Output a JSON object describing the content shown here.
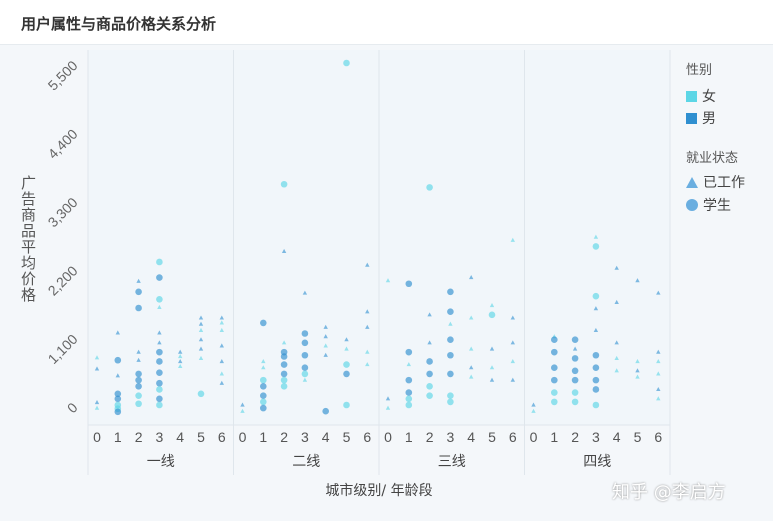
{
  "title": "用户属性与商品价格关系分析",
  "watermark": "知乎 @李启方",
  "legend": {
    "gender_title": "性别",
    "gender": [
      {
        "label": "女",
        "color": "#5cd6e6"
      },
      {
        "label": "男",
        "color": "#2f8fd0"
      }
    ],
    "status_title": "就业状态",
    "status": [
      {
        "label": "已工作",
        "shape": "triangle"
      },
      {
        "label": "学生",
        "shape": "circle"
      }
    ]
  },
  "chart_data": {
    "type": "scatter",
    "title": "用户属性与商品价格关系分析",
    "xlabel": "城市级别/ 年龄段",
    "ylabel": "广告商品平均价格",
    "ylim": [
      -300,
      5700
    ],
    "yticks": [
      0,
      1100,
      2200,
      3300,
      4400,
      5500
    ],
    "ytick_labels": [
      "0",
      "1,100",
      "2,200",
      "3,300",
      "4,400",
      "5,500"
    ],
    "panels": [
      "一线",
      "二线",
      "三线",
      "四线"
    ],
    "age_groups": [
      "0",
      "1",
      "2",
      "3",
      "4",
      "5",
      "6"
    ],
    "point_fields": [
      "panel",
      "age",
      "value",
      "gender",
      "status"
    ],
    "points": [
      [
        0,
        0,
        760,
        "F",
        "W"
      ],
      [
        0,
        0,
        580,
        "M",
        "W"
      ],
      [
        0,
        0,
        40,
        "M",
        "W"
      ],
      [
        0,
        0,
        -50,
        "F",
        "W"
      ],
      [
        0,
        1,
        1160,
        "M",
        "W"
      ],
      [
        0,
        1,
        720,
        "M",
        "S"
      ],
      [
        0,
        1,
        470,
        "M",
        "W"
      ],
      [
        0,
        1,
        180,
        "M",
        "S"
      ],
      [
        0,
        1,
        100,
        "M",
        "S"
      ],
      [
        0,
        1,
        0,
        "F",
        "S"
      ],
      [
        0,
        1,
        -60,
        "F",
        "S"
      ],
      [
        0,
        1,
        -110,
        "M",
        "S"
      ],
      [
        0,
        2,
        1990,
        "M",
        "W"
      ],
      [
        0,
        2,
        1820,
        "M",
        "S"
      ],
      [
        0,
        2,
        1560,
        "M",
        "S"
      ],
      [
        0,
        2,
        850,
        "M",
        "W"
      ],
      [
        0,
        2,
        720,
        "M",
        "W"
      ],
      [
        0,
        2,
        500,
        "M",
        "S"
      ],
      [
        0,
        2,
        400,
        "M",
        "S"
      ],
      [
        0,
        2,
        300,
        "M",
        "S"
      ],
      [
        0,
        2,
        150,
        "F",
        "S"
      ],
      [
        0,
        2,
        20,
        "F",
        "S"
      ],
      [
        0,
        3,
        2300,
        "F",
        "S"
      ],
      [
        0,
        3,
        2050,
        "M",
        "S"
      ],
      [
        0,
        3,
        1700,
        "F",
        "S"
      ],
      [
        0,
        3,
        1570,
        "F",
        "W"
      ],
      [
        0,
        3,
        1160,
        "M",
        "W"
      ],
      [
        0,
        3,
        1000,
        "M",
        "W"
      ],
      [
        0,
        3,
        850,
        "M",
        "S"
      ],
      [
        0,
        3,
        700,
        "M",
        "S"
      ],
      [
        0,
        3,
        520,
        "M",
        "S"
      ],
      [
        0,
        3,
        350,
        "M",
        "S"
      ],
      [
        0,
        3,
        250,
        "F",
        "S"
      ],
      [
        0,
        3,
        100,
        "M",
        "S"
      ],
      [
        0,
        3,
        0,
        "F",
        "S"
      ],
      [
        0,
        4,
        850,
        "M",
        "W"
      ],
      [
        0,
        4,
        780,
        "F",
        "W"
      ],
      [
        0,
        4,
        700,
        "M",
        "W"
      ],
      [
        0,
        4,
        620,
        "F",
        "W"
      ],
      [
        0,
        5,
        1400,
        "M",
        "W"
      ],
      [
        0,
        5,
        1300,
        "M",
        "W"
      ],
      [
        0,
        5,
        1200,
        "F",
        "W"
      ],
      [
        0,
        5,
        1050,
        "M",
        "W"
      ],
      [
        0,
        5,
        900,
        "M",
        "W"
      ],
      [
        0,
        5,
        750,
        "F",
        "W"
      ],
      [
        0,
        5,
        180,
        "F",
        "S"
      ],
      [
        0,
        6,
        1400,
        "M",
        "W"
      ],
      [
        0,
        6,
        1320,
        "F",
        "W"
      ],
      [
        0,
        6,
        1200,
        "F",
        "W"
      ],
      [
        0,
        6,
        950,
        "M",
        "W"
      ],
      [
        0,
        6,
        700,
        "M",
        "W"
      ],
      [
        0,
        6,
        500,
        "F",
        "W"
      ],
      [
        0,
        6,
        350,
        "M",
        "W"
      ],
      [
        1,
        0,
        0,
        "M",
        "W"
      ],
      [
        1,
        0,
        -100,
        "F",
        "W"
      ],
      [
        1,
        1,
        1320,
        "M",
        "S"
      ],
      [
        1,
        1,
        700,
        "F",
        "W"
      ],
      [
        1,
        1,
        600,
        "F",
        "W"
      ],
      [
        1,
        1,
        400,
        "F",
        "S"
      ],
      [
        1,
        1,
        300,
        "M",
        "S"
      ],
      [
        1,
        1,
        150,
        "M",
        "S"
      ],
      [
        1,
        1,
        50,
        "F",
        "S"
      ],
      [
        1,
        1,
        -50,
        "M",
        "S"
      ],
      [
        1,
        2,
        3550,
        "F",
        "S"
      ],
      [
        1,
        2,
        2470,
        "M",
        "W"
      ],
      [
        1,
        2,
        1000,
        "F",
        "W"
      ],
      [
        1,
        2,
        850,
        "M",
        "S"
      ],
      [
        1,
        2,
        780,
        "M",
        "S"
      ],
      [
        1,
        2,
        650,
        "M",
        "S"
      ],
      [
        1,
        2,
        500,
        "M",
        "S"
      ],
      [
        1,
        2,
        400,
        "F",
        "S"
      ],
      [
        1,
        2,
        300,
        "F",
        "S"
      ],
      [
        1,
        3,
        1800,
        "M",
        "W"
      ],
      [
        1,
        3,
        1150,
        "M",
        "S"
      ],
      [
        1,
        3,
        1000,
        "M",
        "S"
      ],
      [
        1,
        3,
        800,
        "M",
        "S"
      ],
      [
        1,
        3,
        600,
        "M",
        "S"
      ],
      [
        1,
        3,
        500,
        "F",
        "S"
      ],
      [
        1,
        3,
        400,
        "F",
        "W"
      ],
      [
        1,
        4,
        1250,
        "M",
        "W"
      ],
      [
        1,
        4,
        1100,
        "M",
        "W"
      ],
      [
        1,
        4,
        950,
        "F",
        "W"
      ],
      [
        1,
        4,
        800,
        "M",
        "W"
      ],
      [
        1,
        4,
        -100,
        "M",
        "S"
      ],
      [
        1,
        5,
        5500,
        "F",
        "S"
      ],
      [
        1,
        5,
        1050,
        "M",
        "W"
      ],
      [
        1,
        5,
        900,
        "F",
        "W"
      ],
      [
        1,
        5,
        650,
        "F",
        "S"
      ],
      [
        1,
        5,
        500,
        "M",
        "S"
      ],
      [
        1,
        5,
        0,
        "F",
        "S"
      ],
      [
        1,
        6,
        2250,
        "M",
        "W"
      ],
      [
        1,
        6,
        1500,
        "M",
        "W"
      ],
      [
        1,
        6,
        1250,
        "M",
        "W"
      ],
      [
        1,
        6,
        850,
        "F",
        "W"
      ],
      [
        1,
        6,
        650,
        "F",
        "W"
      ],
      [
        2,
        0,
        2000,
        "F",
        "W"
      ],
      [
        2,
        0,
        100,
        "M",
        "W"
      ],
      [
        2,
        0,
        -50,
        "F",
        "W"
      ],
      [
        2,
        1,
        1950,
        "M",
        "S"
      ],
      [
        2,
        1,
        850,
        "M",
        "S"
      ],
      [
        2,
        1,
        650,
        "F",
        "W"
      ],
      [
        2,
        1,
        400,
        "M",
        "S"
      ],
      [
        2,
        1,
        200,
        "M",
        "S"
      ],
      [
        2,
        1,
        100,
        "F",
        "S"
      ],
      [
        2,
        1,
        0,
        "F",
        "S"
      ],
      [
        2,
        2,
        3500,
        "F",
        "S"
      ],
      [
        2,
        2,
        1450,
        "M",
        "W"
      ],
      [
        2,
        2,
        1000,
        "M",
        "W"
      ],
      [
        2,
        2,
        700,
        "M",
        "S"
      ],
      [
        2,
        2,
        500,
        "M",
        "S"
      ],
      [
        2,
        2,
        300,
        "F",
        "S"
      ],
      [
        2,
        2,
        150,
        "F",
        "S"
      ],
      [
        2,
        3,
        1820,
        "M",
        "S"
      ],
      [
        2,
        3,
        1500,
        "M",
        "S"
      ],
      [
        2,
        3,
        1300,
        "F",
        "W"
      ],
      [
        2,
        3,
        1050,
        "M",
        "S"
      ],
      [
        2,
        3,
        800,
        "M",
        "S"
      ],
      [
        2,
        3,
        500,
        "M",
        "S"
      ],
      [
        2,
        3,
        150,
        "F",
        "S"
      ],
      [
        2,
        3,
        50,
        "F",
        "S"
      ],
      [
        2,
        4,
        2050,
        "M",
        "W"
      ],
      [
        2,
        4,
        1400,
        "F",
        "W"
      ],
      [
        2,
        4,
        900,
        "F",
        "W"
      ],
      [
        2,
        4,
        600,
        "M",
        "W"
      ],
      [
        2,
        4,
        450,
        "F",
        "W"
      ],
      [
        2,
        5,
        1600,
        "F",
        "W"
      ],
      [
        2,
        5,
        1450,
        "F",
        "S"
      ],
      [
        2,
        5,
        900,
        "M",
        "W"
      ],
      [
        2,
        5,
        600,
        "F",
        "W"
      ],
      [
        2,
        5,
        400,
        "M",
        "W"
      ],
      [
        2,
        6,
        2650,
        "F",
        "W"
      ],
      [
        2,
        6,
        1400,
        "M",
        "W"
      ],
      [
        2,
        6,
        1000,
        "M",
        "W"
      ],
      [
        2,
        6,
        700,
        "F",
        "W"
      ],
      [
        2,
        6,
        400,
        "M",
        "W"
      ],
      [
        3,
        0,
        0,
        "M",
        "W"
      ],
      [
        3,
        0,
        -100,
        "F",
        "W"
      ],
      [
        3,
        1,
        1100,
        "F",
        "W"
      ],
      [
        3,
        1,
        1050,
        "M",
        "S"
      ],
      [
        3,
        1,
        850,
        "M",
        "S"
      ],
      [
        3,
        1,
        600,
        "M",
        "S"
      ],
      [
        3,
        1,
        400,
        "M",
        "S"
      ],
      [
        3,
        1,
        200,
        "F",
        "S"
      ],
      [
        3,
        1,
        50,
        "F",
        "S"
      ],
      [
        3,
        2,
        1050,
        "M",
        "S"
      ],
      [
        3,
        2,
        900,
        "M",
        "W"
      ],
      [
        3,
        2,
        750,
        "M",
        "S"
      ],
      [
        3,
        2,
        550,
        "M",
        "S"
      ],
      [
        3,
        2,
        400,
        "M",
        "S"
      ],
      [
        3,
        2,
        200,
        "F",
        "S"
      ],
      [
        3,
        2,
        50,
        "F",
        "S"
      ],
      [
        3,
        3,
        2700,
        "F",
        "W"
      ],
      [
        3,
        3,
        2550,
        "F",
        "S"
      ],
      [
        3,
        3,
        1750,
        "F",
        "S"
      ],
      [
        3,
        3,
        1550,
        "M",
        "W"
      ],
      [
        3,
        3,
        1200,
        "M",
        "W"
      ],
      [
        3,
        3,
        800,
        "M",
        "S"
      ],
      [
        3,
        3,
        600,
        "M",
        "S"
      ],
      [
        3,
        3,
        400,
        "M",
        "S"
      ],
      [
        3,
        3,
        250,
        "M",
        "S"
      ],
      [
        3,
        3,
        0,
        "F",
        "S"
      ],
      [
        3,
        4,
        2200,
        "M",
        "W"
      ],
      [
        3,
        4,
        1650,
        "M",
        "W"
      ],
      [
        3,
        4,
        1000,
        "M",
        "W"
      ],
      [
        3,
        4,
        750,
        "F",
        "W"
      ],
      [
        3,
        4,
        550,
        "F",
        "W"
      ],
      [
        3,
        5,
        2000,
        "M",
        "W"
      ],
      [
        3,
        5,
        700,
        "F",
        "W"
      ],
      [
        3,
        5,
        550,
        "M",
        "W"
      ],
      [
        3,
        5,
        450,
        "F",
        "W"
      ],
      [
        3,
        6,
        1800,
        "M",
        "W"
      ],
      [
        3,
        6,
        850,
        "M",
        "W"
      ],
      [
        3,
        6,
        700,
        "F",
        "W"
      ],
      [
        3,
        6,
        500,
        "F",
        "W"
      ],
      [
        3,
        6,
        250,
        "M",
        "W"
      ],
      [
        3,
        6,
        100,
        "F",
        "W"
      ]
    ]
  }
}
